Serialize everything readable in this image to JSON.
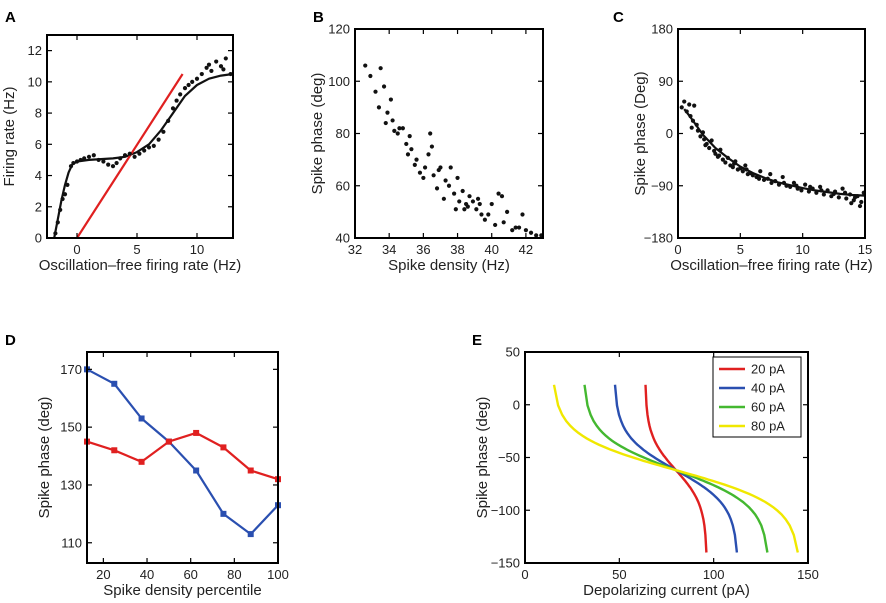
{
  "chart_data": [
    {
      "id": "A",
      "panel_label": "A",
      "type": "scatter",
      "xlabel": "Oscillation–free firing rate (Hz)",
      "ylabel": "Firing rate (Hz)",
      "xlim": [
        -2.5,
        13
      ],
      "ylim": [
        0,
        13
      ],
      "xticks": [
        0,
        5,
        10
      ],
      "yticks": [
        0,
        2,
        4,
        6,
        8,
        10,
        12
      ],
      "points": [
        [
          -1.8,
          0.3
        ],
        [
          -1.6,
          1.0
        ],
        [
          -1.4,
          1.8
        ],
        [
          -1.2,
          2.5
        ],
        [
          -1.0,
          2.8
        ],
        [
          -0.8,
          3.4
        ],
        [
          -0.5,
          4.6
        ],
        [
          -0.3,
          4.8
        ],
        [
          0,
          4.9
        ],
        [
          0.3,
          5.0
        ],
        [
          0.6,
          5.1
        ],
        [
          1.0,
          5.2
        ],
        [
          1.4,
          5.3
        ],
        [
          1.8,
          5.0
        ],
        [
          2.2,
          4.9
        ],
        [
          2.6,
          4.7
        ],
        [
          3.0,
          4.6
        ],
        [
          3.3,
          4.8
        ],
        [
          3.6,
          5.1
        ],
        [
          4.0,
          5.3
        ],
        [
          4.4,
          5.4
        ],
        [
          4.8,
          5.2
        ],
        [
          5.2,
          5.4
        ],
        [
          5.6,
          5.6
        ],
        [
          6.0,
          5.8
        ],
        [
          6.4,
          5.9
        ],
        [
          6.8,
          6.3
        ],
        [
          7.2,
          6.8
        ],
        [
          7.6,
          7.5
        ],
        [
          8.0,
          8.3
        ],
        [
          8.3,
          8.8
        ],
        [
          8.6,
          9.2
        ],
        [
          9.0,
          9.6
        ],
        [
          9.3,
          9.8
        ],
        [
          9.6,
          10.0
        ],
        [
          10.0,
          10.2
        ],
        [
          10.4,
          10.5
        ],
        [
          10.8,
          10.9
        ],
        [
          11.2,
          10.7
        ],
        [
          11.6,
          11.3
        ],
        [
          12.0,
          11.0
        ],
        [
          12.4,
          11.5
        ],
        [
          12.8,
          10.5
        ],
        [
          11.0,
          11.1
        ],
        [
          12.2,
          10.8
        ]
      ],
      "series": [
        {
          "name": "fit",
          "color": "#111111",
          "x": [
            -1.9,
            -1.6,
            -1.3,
            -1.0,
            -0.7,
            -0.4,
            0,
            1,
            2,
            3,
            4,
            5,
            6,
            7,
            8,
            9,
            10,
            11,
            12,
            13
          ],
          "y": [
            0.0,
            1.2,
            2.4,
            3.4,
            4.2,
            4.7,
            4.9,
            5.0,
            5.05,
            5.1,
            5.2,
            5.5,
            6.0,
            6.9,
            8.0,
            9.1,
            9.8,
            10.2,
            10.4,
            10.5
          ]
        },
        {
          "name": "linear",
          "color": "#e02020",
          "x": [
            0,
            8.8
          ],
          "y": [
            0,
            10.5
          ]
        }
      ]
    },
    {
      "id": "B",
      "panel_label": "B",
      "type": "scatter",
      "xlabel": "Spike density (Hz)",
      "ylabel": "Spike phase (deg)",
      "xlim": [
        32,
        43
      ],
      "ylim": [
        40,
        120
      ],
      "xticks": [
        32,
        34,
        36,
        38,
        40,
        42
      ],
      "yticks": [
        40,
        60,
        80,
        100,
        120
      ],
      "points": [
        [
          32.6,
          106
        ],
        [
          32.9,
          102
        ],
        [
          33.2,
          96
        ],
        [
          33.4,
          90
        ],
        [
          33.5,
          105
        ],
        [
          33.7,
          98
        ],
        [
          33.9,
          88
        ],
        [
          34.1,
          93
        ],
        [
          34.2,
          85
        ],
        [
          34.3,
          81
        ],
        [
          34.5,
          80
        ],
        [
          34.6,
          82
        ],
        [
          34.8,
          82
        ],
        [
          35.0,
          76
        ],
        [
          35.1,
          72
        ],
        [
          35.3,
          74
        ],
        [
          35.5,
          68
        ],
        [
          35.6,
          70
        ],
        [
          35.8,
          65
        ],
        [
          36.0,
          63
        ],
        [
          36.1,
          67
        ],
        [
          36.3,
          72
        ],
        [
          36.4,
          80
        ],
        [
          36.5,
          75
        ],
        [
          36.6,
          64
        ],
        [
          36.8,
          59
        ],
        [
          37.0,
          67
        ],
        [
          37.2,
          55
        ],
        [
          37.3,
          62
        ],
        [
          37.5,
          60
        ],
        [
          37.6,
          67
        ],
        [
          37.8,
          57
        ],
        [
          37.9,
          51
        ],
        [
          38.0,
          63
        ],
        [
          38.1,
          54
        ],
        [
          38.3,
          58
        ],
        [
          38.4,
          51
        ],
        [
          38.6,
          52
        ],
        [
          38.7,
          56
        ],
        [
          38.9,
          54
        ],
        [
          39.1,
          51
        ],
        [
          39.2,
          55
        ],
        [
          39.4,
          49
        ],
        [
          39.6,
          47
        ],
        [
          39.8,
          49
        ],
        [
          40.0,
          53
        ],
        [
          40.2,
          45
        ],
        [
          40.4,
          57
        ],
        [
          40.6,
          56
        ],
        [
          40.7,
          46
        ],
        [
          40.9,
          50
        ],
        [
          41.2,
          43
        ],
        [
          41.4,
          44
        ],
        [
          41.6,
          44
        ],
        [
          41.8,
          49
        ],
        [
          42.0,
          43
        ],
        [
          42.3,
          42
        ],
        [
          42.6,
          41
        ],
        [
          42.9,
          41
        ],
        [
          35.2,
          79
        ],
        [
          36.9,
          66
        ],
        [
          38.5,
          53
        ],
        [
          39.3,
          53
        ],
        [
          33.8,
          84
        ]
      ],
      "series": []
    },
    {
      "id": "C",
      "panel_label": "C",
      "type": "scatter",
      "xlabel": "Oscillation–free firing rate (Hz)",
      "ylabel": "Spike phase (Deg)",
      "xlim": [
        0,
        15
      ],
      "ylim": [
        -180,
        180
      ],
      "xticks": [
        0,
        5,
        10,
        15
      ],
      "yticks": [
        -180,
        -90,
        0,
        90,
        180
      ],
      "points": [
        [
          0.3,
          45
        ],
        [
          0.5,
          55
        ],
        [
          0.7,
          38
        ],
        [
          0.9,
          50
        ],
        [
          1.0,
          30
        ],
        [
          1.2,
          22
        ],
        [
          1.3,
          48
        ],
        [
          1.5,
          15
        ],
        [
          1.6,
          5
        ],
        [
          1.8,
          -5
        ],
        [
          2.0,
          2
        ],
        [
          2.1,
          -10
        ],
        [
          2.3,
          -18
        ],
        [
          2.5,
          -25
        ],
        [
          2.7,
          -12
        ],
        [
          2.9,
          -30
        ],
        [
          3.0,
          -35
        ],
        [
          3.2,
          -40
        ],
        [
          3.4,
          -28
        ],
        [
          3.6,
          -45
        ],
        [
          3.8,
          -50
        ],
        [
          4.0,
          -42
        ],
        [
          4.2,
          -55
        ],
        [
          4.4,
          -58
        ],
        [
          4.6,
          -48
        ],
        [
          4.8,
          -62
        ],
        [
          5.0,
          -60
        ],
        [
          5.2,
          -65
        ],
        [
          5.4,
          -55
        ],
        [
          5.6,
          -70
        ],
        [
          5.8,
          -68
        ],
        [
          6.0,
          -72
        ],
        [
          6.3,
          -75
        ],
        [
          6.6,
          -65
        ],
        [
          6.9,
          -80
        ],
        [
          7.2,
          -78
        ],
        [
          7.5,
          -85
        ],
        [
          7.8,
          -82
        ],
        [
          8.1,
          -88
        ],
        [
          8.4,
          -75
        ],
        [
          8.7,
          -90
        ],
        [
          9.0,
          -92
        ],
        [
          9.3,
          -85
        ],
        [
          9.6,
          -95
        ],
        [
          9.9,
          -98
        ],
        [
          10.2,
          -88
        ],
        [
          10.5,
          -100
        ],
        [
          10.8,
          -95
        ],
        [
          11.1,
          -102
        ],
        [
          11.4,
          -92
        ],
        [
          11.7,
          -105
        ],
        [
          12.0,
          -98
        ],
        [
          12.3,
          -108
        ],
        [
          12.6,
          -100
        ],
        [
          12.9,
          -110
        ],
        [
          13.2,
          -95
        ],
        [
          13.5,
          -112
        ],
        [
          13.8,
          -105
        ],
        [
          14.1,
          -115
        ],
        [
          14.4,
          -108
        ],
        [
          14.7,
          -118
        ],
        [
          14.9,
          -102
        ],
        [
          1.1,
          10
        ],
        [
          2.2,
          -20
        ],
        [
          3.3,
          -38
        ],
        [
          4.5,
          -52
        ],
        [
          5.5,
          -62
        ],
        [
          6.5,
          -78
        ],
        [
          7.4,
          -70
        ],
        [
          8.5,
          -85
        ],
        [
          9.5,
          -90
        ],
        [
          10.6,
          -92
        ],
        [
          11.5,
          -98
        ],
        [
          12.5,
          -104
        ],
        [
          13.4,
          -102
        ],
        [
          14.2,
          -110
        ],
        [
          14.6,
          -125
        ],
        [
          13.9,
          -120
        ]
      ],
      "series": [
        {
          "name": "fit",
          "color": "#111111",
          "x": [
            0.5,
            1,
            2,
            3,
            4,
            5,
            6,
            7,
            8,
            9,
            10,
            11,
            12,
            13,
            14,
            15
          ],
          "y": [
            42,
            28,
            -2,
            -25,
            -42,
            -57,
            -68,
            -77,
            -84,
            -89,
            -94,
            -98,
            -101,
            -104,
            -106,
            -107
          ]
        }
      ]
    },
    {
      "id": "D",
      "panel_label": "D",
      "type": "line",
      "xlabel": "Spike density percentile",
      "ylabel": "Spike phase (deg)",
      "xlim": [
        12.5,
        100
      ],
      "ylim": [
        103,
        176
      ],
      "xticks": [
        20,
        40,
        60,
        80,
        100
      ],
      "yticks": [
        110,
        130,
        150,
        170
      ],
      "series": [
        {
          "name": "blue",
          "color": "#2a4fb0",
          "x": [
            12.5,
            25,
            37.5,
            50,
            62.5,
            75,
            87.5,
            100
          ],
          "y": [
            170,
            165,
            153,
            145,
            135,
            120,
            113,
            123
          ]
        },
        {
          "name": "red",
          "color": "#e02020",
          "x": [
            12.5,
            25,
            37.5,
            50,
            62.5,
            75,
            87.5,
            100
          ],
          "y": [
            145,
            142,
            138,
            145,
            148,
            143,
            135,
            132
          ]
        }
      ]
    },
    {
      "id": "E",
      "panel_label": "E",
      "type": "line",
      "xlabel": "Depolarizing current (pA)",
      "ylabel": "Spike phase (deg)",
      "xlim": [
        0,
        150
      ],
      "ylim": [
        -150,
        50
      ],
      "xticks": [
        0,
        50,
        100,
        150
      ],
      "yticks": [
        -150,
        -100,
        -50,
        0,
        50
      ],
      "legend": {
        "position": "top-right",
        "entries": [
          "20 pA",
          "40 pA",
          "60 pA",
          "80 pA"
        ]
      },
      "series": [
        {
          "name": "20 pA",
          "color": "#e02020",
          "amplitude": 20
        },
        {
          "name": "40 pA",
          "color": "#2a4fb0",
          "amplitude": 40
        },
        {
          "name": "60 pA",
          "color": "#44b830",
          "amplitude": 60
        },
        {
          "name": "80 pA",
          "color": "#f0e800",
          "amplitude": 80
        }
      ]
    }
  ]
}
